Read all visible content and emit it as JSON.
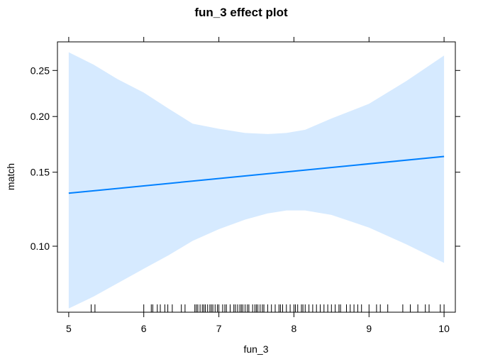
{
  "chart_data": {
    "type": "line",
    "title": "fun_3 effect plot",
    "xlabel": "fun_3",
    "ylabel": "match",
    "xlim": [
      4.85,
      10.15
    ],
    "ylim": [
      0.0685,
      0.285
    ],
    "y_scale": "logit",
    "x_ticks": [
      5,
      6,
      7,
      8,
      9,
      10
    ],
    "y_ticks": [
      0.1,
      0.15,
      0.2,
      0.25
    ],
    "y_tick_labels": [
      "0.10",
      "0.15",
      "0.20",
      "0.25"
    ],
    "grid": false,
    "series": [
      {
        "x": [
          5,
          10
        ],
        "y": [
          0.134,
          0.163
        ]
      }
    ],
    "confidence_band": {
      "x": [
        5,
        5.33,
        5.65,
        6.0,
        6.33,
        6.65,
        7.0,
        7.35,
        7.65,
        7.9,
        8.15,
        8.5,
        9.0,
        9.5,
        10.0
      ],
      "lower": [
        0.07,
        0.075,
        0.081,
        0.088,
        0.095,
        0.103,
        0.11,
        0.116,
        0.12,
        0.122,
        0.122,
        0.119,
        0.111,
        0.101,
        0.091
      ],
      "upper": [
        0.272,
        0.257,
        0.24,
        0.225,
        0.208,
        0.193,
        0.188,
        0.184,
        0.183,
        0.184,
        0.187,
        0.198,
        0.213,
        0.238,
        0.268
      ]
    },
    "color_line": "#0080ff",
    "color_band": "#d6eaff",
    "rug": [
      5.3,
      5.35,
      6.0,
      6.1,
      6.12,
      6.18,
      6.22,
      6.28,
      6.32,
      6.38,
      6.5,
      6.55,
      6.68,
      6.7,
      6.72,
      6.75,
      6.78,
      6.8,
      6.82,
      6.85,
      6.88,
      6.9,
      6.92,
      6.95,
      6.98,
      7.0,
      7.05,
      7.08,
      7.1,
      7.15,
      7.2,
      7.22,
      7.25,
      7.28,
      7.3,
      7.32,
      7.35,
      7.38,
      7.4,
      7.45,
      7.48,
      7.5,
      7.52,
      7.55,
      7.58,
      7.6,
      7.65,
      7.7,
      7.75,
      7.8,
      7.82,
      7.85,
      7.9,
      7.95,
      8.0,
      8.02,
      8.05,
      8.1,
      8.12,
      8.15,
      8.2,
      8.25,
      8.3,
      8.35,
      8.4,
      8.45,
      8.5,
      8.55,
      8.6,
      8.62,
      8.7,
      8.75,
      8.8,
      8.85,
      8.9,
      9.0,
      9.1,
      9.15,
      9.25,
      9.45,
      9.55,
      9.65,
      9.75,
      9.8,
      9.95,
      10.0
    ]
  }
}
